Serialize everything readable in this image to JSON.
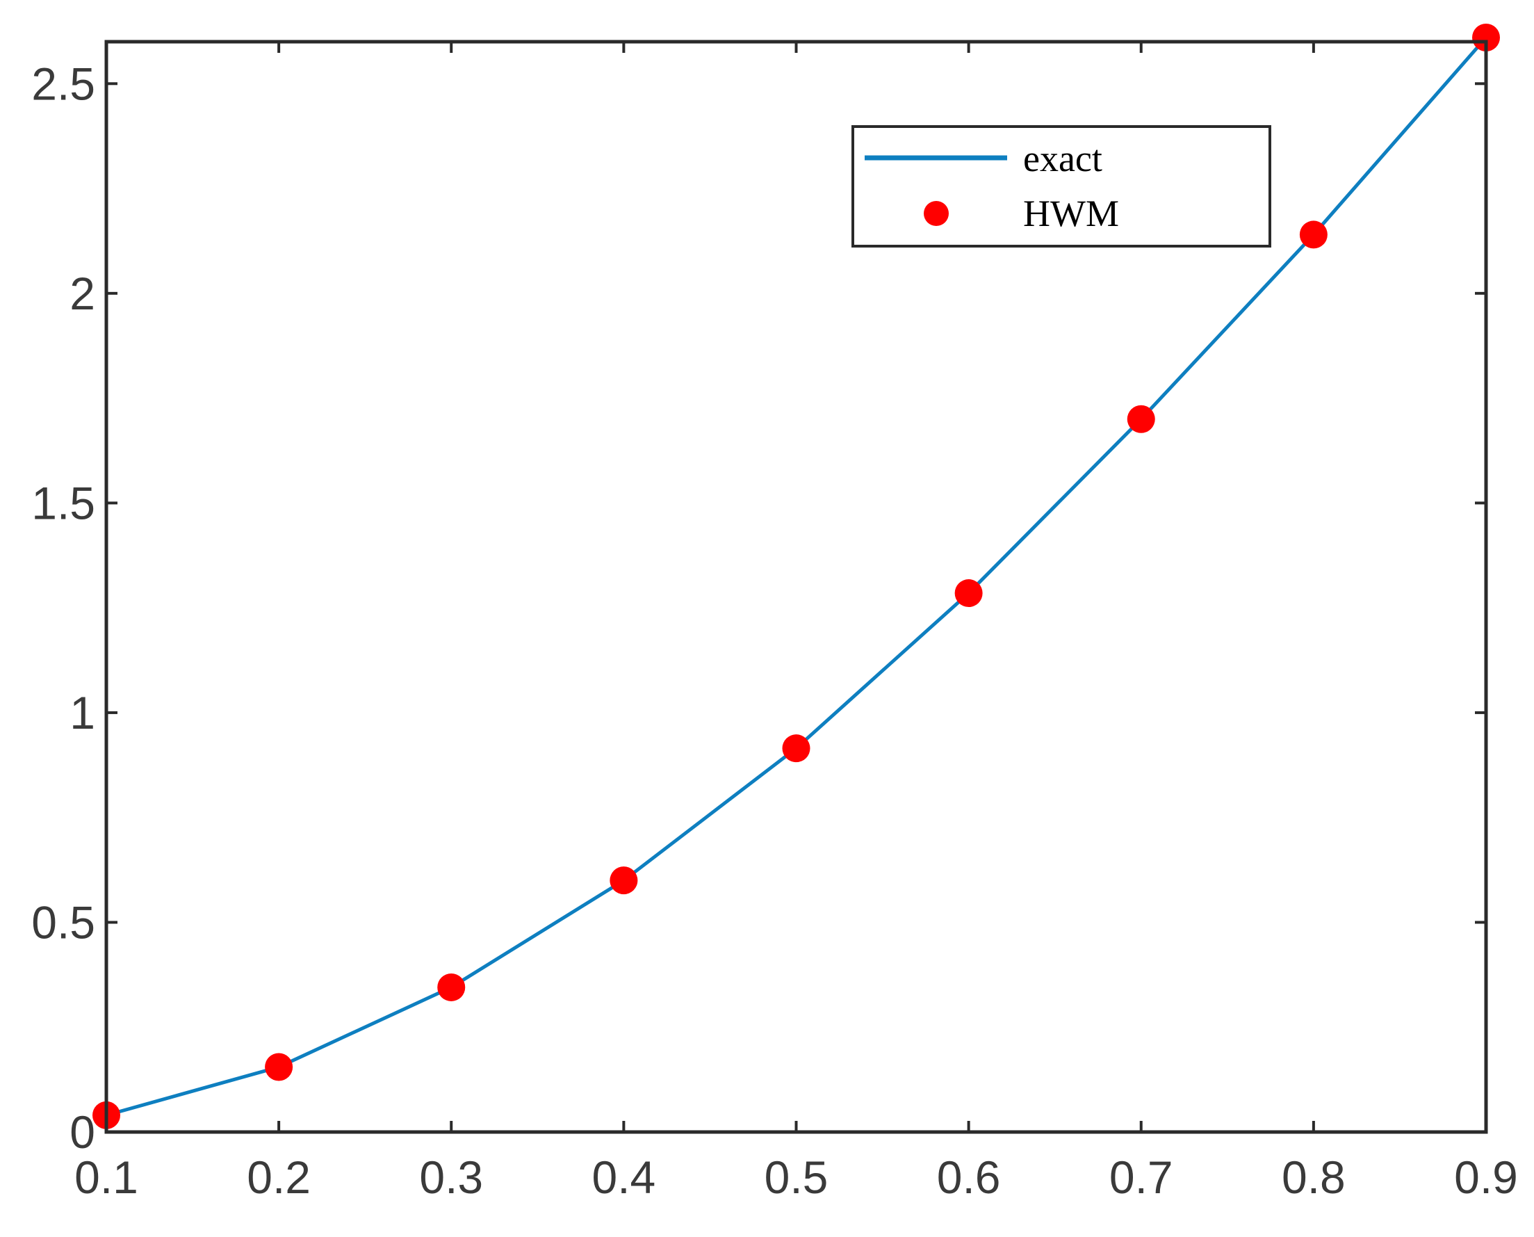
{
  "chart_data": {
    "type": "line",
    "title": "",
    "xlabel": "",
    "ylabel": "",
    "xlim": [
      0.1,
      0.9
    ],
    "ylim": [
      0,
      2.6
    ],
    "xticks": [
      0.1,
      0.2,
      0.3,
      0.4,
      0.5,
      0.6,
      0.7,
      0.8,
      0.9
    ],
    "xtick_labels": [
      "0.1",
      "0.2",
      "0.3",
      "0.4",
      "0.5",
      "0.6",
      "0.7",
      "0.8",
      "0.9"
    ],
    "yticks": [
      0,
      0.5,
      1,
      1.5,
      2,
      2.5
    ],
    "ytick_labels": [
      "0",
      "0.5",
      "1",
      "1.5",
      "2",
      "2.5"
    ],
    "grid": false,
    "legend_position": "top-right",
    "series": [
      {
        "name": "exact",
        "style": "line",
        "color": "#0e7fc0",
        "x": [
          0.1,
          0.2,
          0.3,
          0.4,
          0.5,
          0.6,
          0.7,
          0.8,
          0.9
        ],
        "y": [
          0.04,
          0.155,
          0.345,
          0.6,
          0.915,
          1.285,
          1.7,
          2.14,
          2.61
        ]
      },
      {
        "name": "HWM",
        "style": "markers",
        "color": "#ff0000",
        "x": [
          0.1,
          0.2,
          0.3,
          0.4,
          0.5,
          0.6,
          0.7,
          0.8,
          0.9
        ],
        "y": [
          0.04,
          0.155,
          0.345,
          0.6,
          0.915,
          1.285,
          1.7,
          2.14,
          2.61
        ]
      }
    ]
  }
}
